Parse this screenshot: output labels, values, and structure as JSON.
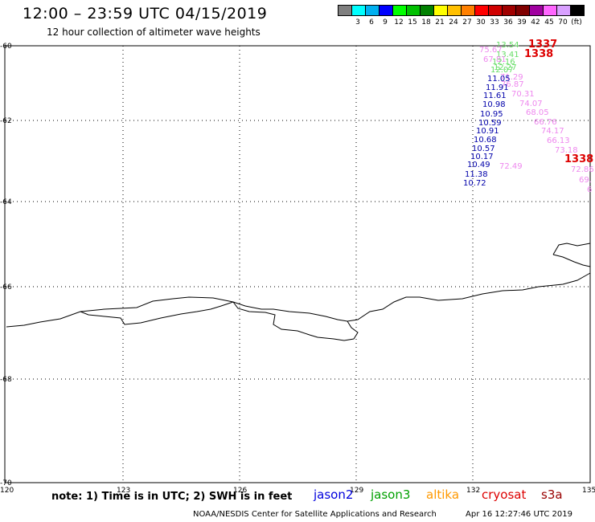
{
  "header": {
    "title": "12:00 – 23:59 UTC 04/15/2019",
    "subtitle": "12 hour collection of altimeter wave heights"
  },
  "legend": {
    "colors": [
      "#7f7f7f",
      "#00ffff",
      "#00b0f0",
      "#0000ff",
      "#00ff00",
      "#00c000",
      "#008000",
      "#ffff00",
      "#ffc000",
      "#ff8000",
      "#ff0000",
      "#d00000",
      "#a00000",
      "#800000",
      "#a000a0",
      "#ff66ff",
      "#d9a0ff",
      "#000000"
    ],
    "labels": [
      "3",
      "6",
      "9",
      "12",
      "15",
      "18",
      "21",
      "24",
      "27",
      "30",
      "33",
      "36",
      "39",
      "42",
      "45",
      "70",
      "(ft)"
    ]
  },
  "map": {
    "lat_ticks": [
      "-60",
      "-62",
      "-64",
      "-66",
      "-68",
      "-70"
    ],
    "lon_ticks": [
      "120",
      "123",
      "126",
      "129",
      "132",
      "135"
    ]
  },
  "observations": [
    {
      "text": "13.54",
      "color": "#66dd66"
    },
    {
      "text": "1337",
      "color": "#dd0000"
    },
    {
      "text": "75.67",
      "color": "#ee88ee"
    },
    {
      "text": "13.41",
      "color": "#66dd66"
    },
    {
      "text": "1338",
      "color": "#dd0000"
    },
    {
      "text": "67.81",
      "color": "#ee88ee"
    },
    {
      "text": "12.16",
      "color": "#66dd66"
    },
    {
      "text": "12.27",
      "color": "#66dd66"
    },
    {
      "text": "12.07",
      "color": "#66dd66"
    },
    {
      "text": "71.29",
      "color": "#ee88ee"
    },
    {
      "text": "11.05",
      "color": "#0000aa"
    },
    {
      "text": "76.87",
      "color": "#ee88ee"
    },
    {
      "text": "11.91",
      "color": "#0000aa"
    },
    {
      "text": "70.31",
      "color": "#ee88ee"
    },
    {
      "text": "11.61",
      "color": "#0000aa"
    },
    {
      "text": "74.07",
      "color": "#ee88ee"
    },
    {
      "text": "10.98",
      "color": "#0000aa"
    },
    {
      "text": "68.05",
      "color": "#ee88ee"
    },
    {
      "text": "10.95",
      "color": "#0000aa"
    },
    {
      "text": "66.76",
      "color": "#ee88ee"
    },
    {
      "text": "10.59",
      "color": "#0000aa"
    },
    {
      "text": "74.17",
      "color": "#ee88ee"
    },
    {
      "text": "10.91",
      "color": "#0000aa"
    },
    {
      "text": "66.13",
      "color": "#ee88ee"
    },
    {
      "text": "10.68",
      "color": "#0000aa"
    },
    {
      "text": "73.18",
      "color": "#ee88ee"
    },
    {
      "text": "10.57",
      "color": "#0000aa"
    },
    {
      "text": "72.49",
      "color": "#ee88ee"
    },
    {
      "text": "10.17",
      "color": "#0000aa"
    },
    {
      "text": "1338",
      "color": "#dd0000"
    },
    {
      "text": "10.49",
      "color": "#0000aa"
    },
    {
      "text": "72.86",
      "color": "#ee88ee"
    },
    {
      "text": "11.38",
      "color": "#0000aa"
    },
    {
      "text": "69.",
      "color": "#ee88ee"
    },
    {
      "text": "10.72",
      "color": "#0000aa"
    },
    {
      "text": "6",
      "color": "#ee88ee"
    }
  ],
  "notes": {
    "note": "note: 1) Time is in UTC; 2) SWH is in feet",
    "sats": [
      {
        "text": "jason2",
        "color": "#0000dd"
      },
      {
        "text": "jason3",
        "color": "#00a000"
      },
      {
        "text": "altika",
        "color": "#ff9900"
      },
      {
        "text": "cryosat",
        "color": "#dd0000"
      },
      {
        "text": "s3a",
        "color": "#990000"
      }
    ],
    "credit": "NOAA/NESDIS Center for Satellite Applications and Research",
    "timestamp": "Apr 16 12:27:46 UTC 2019"
  }
}
